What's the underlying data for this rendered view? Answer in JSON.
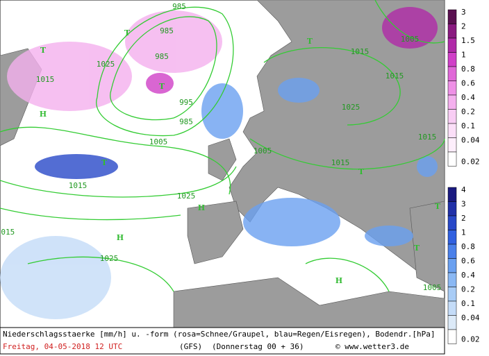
{
  "map": {
    "caption": "Niederschlagsstaerke [mm/h] u. -form (rosa=Schnee/Graupel, blau=Regen/Eisregen), Bodendr.[hPa]",
    "date": "Freitag, 04-05-2018   12 UTC",
    "model": "(GFS)",
    "run": "(Donnerstag 00 + 36)",
    "credit": "© www.wetter3.de",
    "isobar_labels": [
      "985",
      "985",
      "985",
      "995",
      "985",
      "1005",
      "1025",
      "1015",
      "1015",
      "1025",
      "1025",
      "1005",
      "1015",
      "1025",
      "1015",
      "1015",
      "1015",
      "1005",
      "1005",
      "1015"
    ],
    "pressure_centers": [
      "T",
      "T",
      "T",
      "T",
      "T",
      "T",
      "T",
      "T",
      "H",
      "H",
      "H",
      "H"
    ],
    "snow_legend": {
      "labels": [
        3,
        2,
        1.5,
        1,
        0.8,
        0.6,
        0.4,
        0.2,
        0.1,
        0.04,
        0.02
      ],
      "colors": [
        "#5a1050",
        "#8a1a80",
        "#b02aa8",
        "#d040c8",
        "#e068d8",
        "#ee90e6",
        "#f4b0ee",
        "#f8cdf4",
        "#fbdff8",
        "#fdeefb",
        "#ffffff"
      ]
    },
    "rain_legend": {
      "labels": [
        4,
        3,
        2,
        1,
        0.8,
        0.6,
        0.4,
        0.2,
        0.1,
        0.04,
        0.02
      ],
      "colors": [
        "#1a1a80",
        "#2030a8",
        "#2848c8",
        "#3060e0",
        "#4a80ea",
        "#6aa0f0",
        "#8ab8f4",
        "#a8ccf6",
        "#c4dcf8",
        "#dceaf8",
        "#ffffff"
      ]
    }
  }
}
